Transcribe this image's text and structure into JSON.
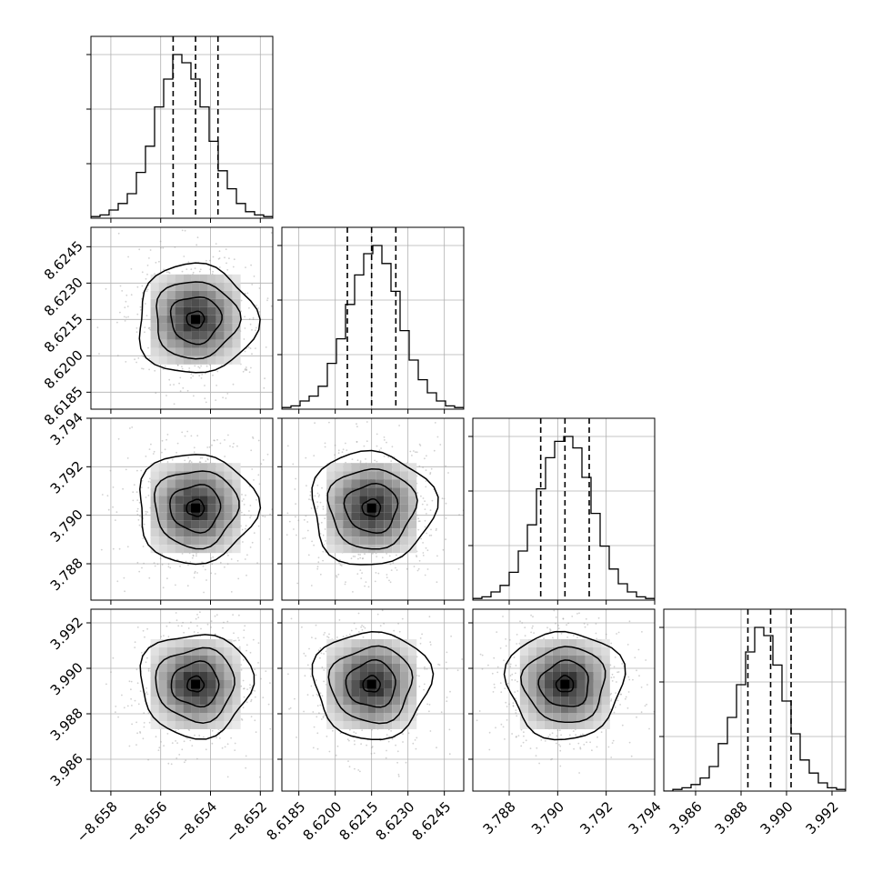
{
  "chart_data": {
    "type": "corner",
    "description": "Corner plot of 4 parameters: 1-D marginal histograms on the diagonal with dashed quantile lines, 2-D density panels (scatter points, grayscale density, contours) below the diagonal.",
    "grid": true,
    "parameters": [
      {
        "range": [
          -8.6588,
          -8.6515
        ],
        "ticks": [
          -8.658,
          -8.656,
          -8.654,
          -8.652
        ],
        "tick_labels": [
          "−8.658",
          "−8.656",
          "−8.654",
          "−8.652"
        ],
        "quantiles": [
          -8.6555,
          -8.6546,
          -8.6537
        ],
        "histogram": [
          0.01,
          0.02,
          0.05,
          0.09,
          0.15,
          0.28,
          0.44,
          0.68,
          0.85,
          1.0,
          0.95,
          0.85,
          0.68,
          0.47,
          0.29,
          0.18,
          0.09,
          0.04,
          0.02,
          0.01
        ]
      },
      {
        "range": [
          8.6178,
          8.6253
        ],
        "ticks": [
          8.6185,
          8.62,
          8.6215,
          8.623,
          8.6245
        ],
        "tick_labels": [
          "8.6185",
          "8.6200",
          "8.6215",
          "8.6230",
          "8.6245"
        ],
        "quantiles": [
          8.6205,
          8.6215,
          8.6225
        ],
        "histogram": [
          0.01,
          0.02,
          0.05,
          0.08,
          0.14,
          0.28,
          0.43,
          0.64,
          0.82,
          0.95,
          1.0,
          0.89,
          0.72,
          0.48,
          0.3,
          0.18,
          0.1,
          0.05,
          0.02,
          0.01
        ]
      },
      {
        "range": [
          3.7865,
          3.794
        ],
        "ticks": [
          3.788,
          3.79,
          3.792,
          3.794
        ],
        "tick_labels": [
          "3.788",
          "3.790",
          "3.792",
          "3.794"
        ],
        "quantiles": [
          3.7893,
          3.7903,
          3.7913
        ],
        "histogram": [
          0.01,
          0.02,
          0.05,
          0.09,
          0.17,
          0.3,
          0.46,
          0.68,
          0.87,
          0.97,
          1.0,
          0.93,
          0.75,
          0.53,
          0.33,
          0.19,
          0.1,
          0.05,
          0.02,
          0.01
        ]
      },
      {
        "range": [
          3.9846,
          3.9926
        ],
        "ticks": [
          3.986,
          3.988,
          3.99,
          3.992
        ],
        "tick_labels": [
          "3.986",
          "3.988",
          "3.990",
          "3.992"
        ],
        "quantiles": [
          3.9883,
          3.9893,
          3.9902
        ],
        "histogram": [
          0.0,
          0.01,
          0.02,
          0.04,
          0.08,
          0.15,
          0.29,
          0.45,
          0.65,
          0.85,
          1.0,
          0.95,
          0.77,
          0.55,
          0.35,
          0.19,
          0.11,
          0.05,
          0.02,
          0.01
        ]
      }
    ],
    "colors": {
      "line": "#000000",
      "grid": "#b0b0b0",
      "points": "#9a9a9a"
    }
  }
}
